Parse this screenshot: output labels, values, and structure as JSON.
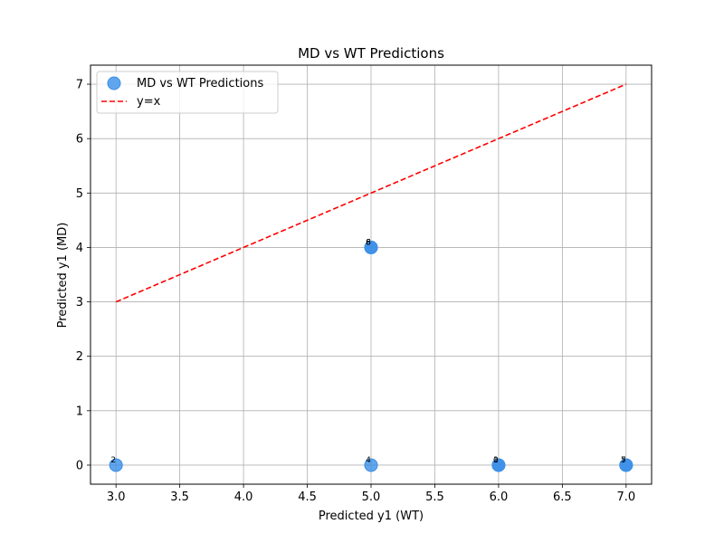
{
  "chart_data": {
    "type": "scatter",
    "title": "MD vs WT Predictions",
    "xlabel": "Predicted y1 (WT)",
    "ylabel": "Predicted y1 (MD)",
    "xlim": [
      2.8,
      7.2
    ],
    "ylim": [
      -0.35,
      7.35
    ],
    "x_ticks": [
      3.0,
      3.5,
      4.0,
      4.5,
      5.0,
      5.5,
      6.0,
      6.5,
      7.0
    ],
    "x_tick_labels": [
      "3.0",
      "3.5",
      "4.0",
      "4.5",
      "5.0",
      "5.5",
      "6.0",
      "6.5",
      "7.0"
    ],
    "y_ticks": [
      0,
      1,
      2,
      3,
      4,
      5,
      6,
      7
    ],
    "y_tick_labels": [
      "0",
      "1",
      "2",
      "3",
      "4",
      "5",
      "6",
      "7"
    ],
    "grid": true,
    "legend_position": "top-left",
    "series": [
      {
        "name": "MD vs WT Predictions",
        "kind": "scatter",
        "color": "#3a8fe8",
        "points": [
          {
            "x": 3,
            "y": 0,
            "label": "2"
          },
          {
            "x": 5,
            "y": 4,
            "label": "8"
          },
          {
            "x": 5,
            "y": 4,
            "label": "6"
          },
          {
            "x": 5,
            "y": 0,
            "label": "4"
          },
          {
            "x": 6,
            "y": 0,
            "label": "1"
          },
          {
            "x": 6,
            "y": 0,
            "label": "0"
          },
          {
            "x": 7,
            "y": 0,
            "label": "5"
          },
          {
            "x": 7,
            "y": 0,
            "label": "7"
          }
        ]
      },
      {
        "name": "y=x",
        "kind": "line",
        "color": "#ff0000",
        "dashed": true,
        "x": [
          3,
          7
        ],
        "y": [
          3,
          7
        ]
      }
    ]
  }
}
